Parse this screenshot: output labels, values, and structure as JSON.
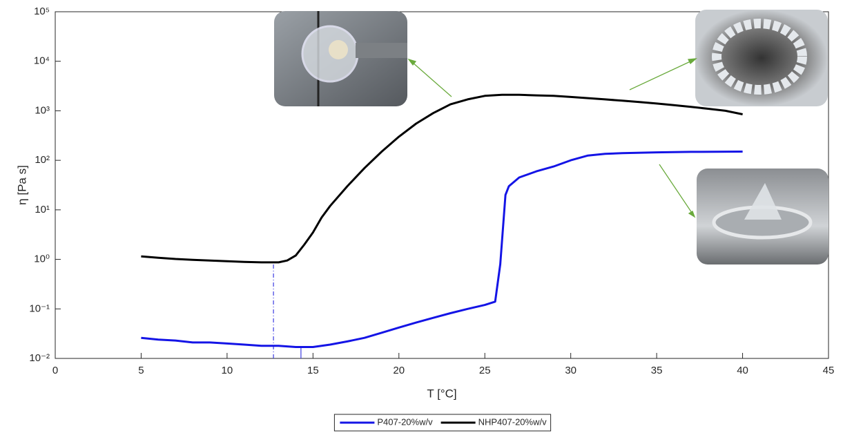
{
  "chart_data": {
    "type": "line",
    "xlabel": "T [°C]",
    "ylabel": "η [Pa s]",
    "xlim": [
      0,
      45
    ],
    "xticks": [
      0,
      5,
      10,
      15,
      20,
      25,
      30,
      35,
      40,
      45
    ],
    "ylim": [
      0.01,
      100000
    ],
    "log_y": true,
    "yticks": [
      {
        "value": 0.01,
        "label": "10⁻²"
      },
      {
        "value": 0.1,
        "label": "10⁻¹"
      },
      {
        "value": 1,
        "label": "10⁰"
      },
      {
        "value": 10,
        "label": "10¹"
      },
      {
        "value": 100,
        "label": "10²"
      },
      {
        "value": 1000,
        "label": "10³"
      },
      {
        "value": 10000,
        "label": "10⁴"
      },
      {
        "value": 100000,
        "label": "10⁵"
      }
    ],
    "legend": "bottom",
    "series": [
      {
        "name": "P407-20%w/v",
        "color": "#1414e6",
        "x": [
          5,
          6,
          7,
          8,
          9,
          10,
          11,
          12,
          13,
          14,
          15,
          16,
          17,
          18,
          19,
          20,
          21,
          22,
          23,
          24,
          25,
          25.6,
          25.9,
          26.2,
          26.4,
          27,
          28,
          29,
          30,
          31,
          32,
          33,
          35,
          37,
          40
        ],
        "values": [
          0.026,
          0.024,
          0.023,
          0.021,
          0.021,
          0.02,
          0.019,
          0.018,
          0.018,
          0.017,
          0.017,
          0.019,
          0.022,
          0.026,
          0.033,
          0.042,
          0.053,
          0.066,
          0.082,
          0.1,
          0.12,
          0.14,
          0.8,
          20,
          30,
          45,
          60,
          75,
          100,
          125,
          135,
          140,
          145,
          148,
          150
        ]
      },
      {
        "name": "NHP407-20%w/v",
        "color": "#000000",
        "x": [
          5,
          6,
          7,
          8,
          9,
          10,
          11,
          12,
          13,
          13.5,
          14,
          14.5,
          15,
          15.5,
          16,
          17,
          18,
          19,
          20,
          21,
          22,
          23,
          24,
          25,
          26,
          27,
          28,
          29,
          30,
          31,
          32,
          33,
          34,
          35,
          36,
          37,
          38,
          39,
          40
        ],
        "values": [
          1.15,
          1.08,
          1.02,
          0.98,
          0.95,
          0.92,
          0.89,
          0.87,
          0.87,
          0.95,
          1.2,
          2,
          3.5,
          7,
          12,
          30,
          70,
          150,
          300,
          550,
          900,
          1350,
          1700,
          2000,
          2100,
          2100,
          2050,
          2000,
          1900,
          1800,
          1700,
          1600,
          1500,
          1400,
          1300,
          1200,
          1100,
          1000,
          850
        ]
      }
    ],
    "vlines": [
      {
        "x": 12.7,
        "series": 1,
        "color": "#3a3ae0",
        "dash": "6 3 1 3"
      },
      {
        "x": 14.3,
        "series": 0,
        "color": "#3a3ae0",
        "dash": "none"
      }
    ]
  }
}
